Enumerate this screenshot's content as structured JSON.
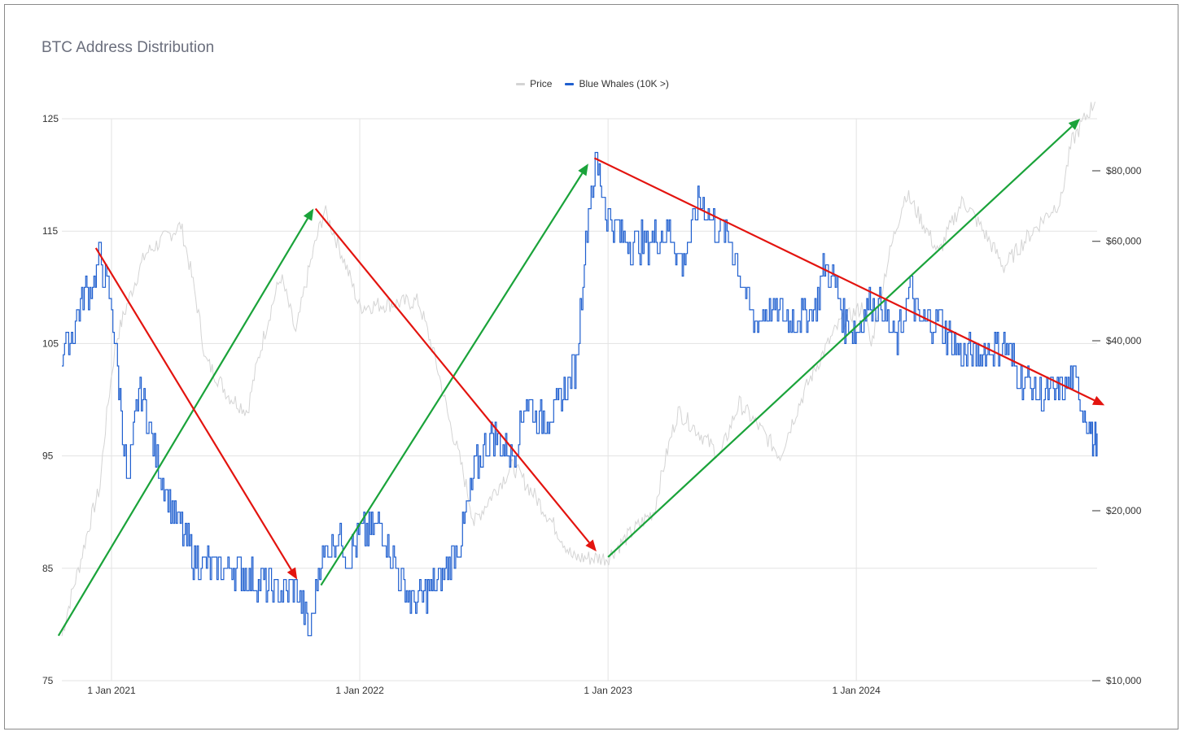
{
  "colors": {
    "price": "#d4d4d4",
    "whales": "#1f5fcf",
    "up_arrow": "#1aa33a",
    "down_arrow": "#e3140f",
    "grid": "#e3e3e3"
  },
  "chart_data": {
    "type": "line",
    "title": "BTC Address Distribution",
    "legend_position": "top-center",
    "grid": true,
    "x_ticks": [
      "1 Jan 2021",
      "1 Jan 2022",
      "1 Jan 2023",
      "1 Jan 2024"
    ],
    "y_left": {
      "ylim": [
        75,
        125
      ],
      "ticks": [
        "75",
        "85",
        "95",
        "105",
        "115",
        "125"
      ]
    },
    "y_right": {
      "scale": "log",
      "ticks": [
        "$10,000",
        "$20,000",
        "$40,000",
        "$60,000",
        "$80,000"
      ]
    },
    "xlim": [
      "2020-10-20",
      "2024-12-20"
    ],
    "series": [
      {
        "name": "Price",
        "axis": "right",
        "x": [
          "2020-10-20",
          "2020-11-15",
          "2020-12-15",
          "2021-01-08",
          "2021-02-20",
          "2021-04-13",
          "2021-05-19",
          "2021-06-22",
          "2021-07-20",
          "2021-09-07",
          "2021-09-29",
          "2021-11-10",
          "2021-12-31",
          "2022-03-28",
          "2022-05-12",
          "2022-06-18",
          "2022-08-14",
          "2022-11-10",
          "2022-12-31",
          "2023-03-10",
          "2023-04-14",
          "2023-06-15",
          "2023-07-13",
          "2023-09-11",
          "2023-10-24",
          "2023-12-08",
          "2024-01-11",
          "2024-01-23",
          "2024-03-14",
          "2024-05-01",
          "2024-06-06",
          "2024-08-05",
          "2024-10-28",
          "2024-11-13",
          "2024-12-17"
        ],
        "values": [
          12000,
          16000,
          22000,
          40000,
          57000,
          64000,
          37000,
          32000,
          30000,
          52000,
          41000,
          68000,
          46000,
          47000,
          29000,
          19000,
          24000,
          16500,
          16500,
          20000,
          30000,
          25000,
          31000,
          25000,
          34000,
          43000,
          46000,
          39000,
          73000,
          57000,
          71000,
          54000,
          71000,
          90000,
          106000
        ]
      },
      {
        "name": "Blue Whales (10K >)",
        "axis": "left",
        "x": [
          "2020-10-20",
          "2020-11-05",
          "2020-11-20",
          "2020-12-08",
          "2020-12-15",
          "2020-12-25",
          "2021-01-01",
          "2021-01-05",
          "2021-01-08",
          "2021-01-15",
          "2021-01-25",
          "2021-02-10",
          "2021-03-01",
          "2021-03-15",
          "2021-04-10",
          "2021-05-01",
          "2021-06-01",
          "2021-07-01",
          "2021-08-01",
          "2021-09-01",
          "2021-10-01",
          "2021-10-15",
          "2021-10-20",
          "2021-11-01",
          "2021-11-15",
          "2021-12-01",
          "2021-12-15",
          "2022-01-01",
          "2022-02-01",
          "2022-03-01",
          "2022-03-20",
          "2022-04-15",
          "2022-05-10",
          "2022-06-01",
          "2022-06-20",
          "2022-07-15",
          "2022-08-15",
          "2022-09-01",
          "2022-09-20",
          "2022-10-15",
          "2022-11-01",
          "2022-11-15",
          "2022-11-25",
          "2022-12-05",
          "2022-12-15",
          "2023-01-01",
          "2023-02-01",
          "2023-03-01",
          "2023-04-01",
          "2023-04-20",
          "2023-05-15",
          "2023-06-01",
          "2023-07-01",
          "2023-08-01",
          "2023-09-01",
          "2023-10-01",
          "2023-10-20",
          "2023-11-01",
          "2023-11-15",
          "2023-12-01",
          "2023-12-15",
          "2024-01-01",
          "2024-01-20",
          "2024-02-10",
          "2024-03-01",
          "2024-03-20",
          "2024-04-01",
          "2024-05-01",
          "2024-06-01",
          "2024-07-01",
          "2024-08-01",
          "2024-09-01",
          "2024-10-01",
          "2024-11-01",
          "2024-11-15",
          "2024-12-01",
          "2024-12-10",
          "2024-12-15",
          "2024-12-20"
        ],
        "values": [
          104,
          106,
          109,
          111,
          113,
          110,
          108,
          106,
          104,
          99,
          92,
          101,
          97,
          93,
          89,
          86,
          85,
          85,
          84,
          83,
          83,
          80,
          79,
          85,
          87,
          88,
          86,
          88,
          89,
          84,
          82,
          83,
          85,
          88,
          94,
          97,
          95,
          100,
          98,
          99,
          101,
          103,
          111,
          118,
          121,
          116,
          114,
          114,
          115,
          112,
          118,
          116,
          114,
          107,
          108,
          107,
          108,
          108,
          112,
          110,
          107,
          106,
          109,
          108,
          105,
          110,
          107,
          107,
          104,
          104,
          105,
          102,
          100,
          101,
          102,
          99,
          97,
          96,
          97
        ]
      }
    ],
    "annotations": [
      {
        "type": "trend-arrow",
        "direction": "up",
        "x0": "2020-10-15",
        "y0": 79,
        "x1": "2021-10-25",
        "y1": 117
      },
      {
        "type": "trend-arrow",
        "direction": "down",
        "x0": "2020-12-09",
        "y0": 113.5,
        "x1": "2021-10-01",
        "y1": 84
      },
      {
        "type": "trend-arrow",
        "direction": "up",
        "x0": "2021-11-05",
        "y0": 83.5,
        "x1": "2022-12-03",
        "y1": 121
      },
      {
        "type": "trend-arrow",
        "direction": "down",
        "x0": "2021-10-28",
        "y0": 117,
        "x1": "2022-12-15",
        "y1": 86.5
      },
      {
        "type": "trend-arrow",
        "direction": "up",
        "x0": "2023-01-01",
        "y0": 86,
        "x1": "2024-11-25",
        "y1": 125
      },
      {
        "type": "trend-arrow",
        "direction": "down",
        "x0": "2022-12-12",
        "y0": 121.5,
        "x1": "2024-12-31",
        "y1": 99.5
      }
    ]
  }
}
